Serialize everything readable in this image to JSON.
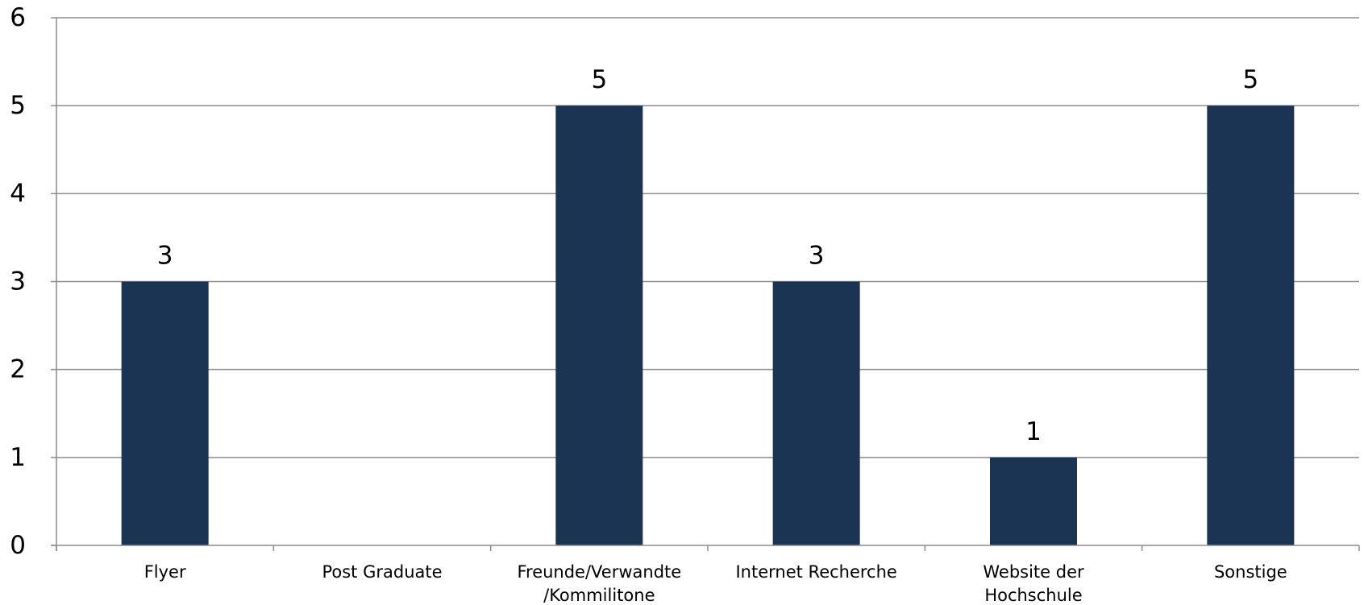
{
  "chart_data": {
    "type": "bar",
    "categories": [
      [
        "Flyer"
      ],
      [
        "Post Graduate"
      ],
      [
        "Freunde/Verwandte",
        "/Kommilitone"
      ],
      [
        "Internet Recherche"
      ],
      [
        "Website der",
        "Hochschule"
      ],
      [
        "Sonstige"
      ]
    ],
    "values": [
      3,
      0,
      5,
      3,
      1,
      5
    ],
    "data_labels": [
      "3",
      "",
      "5",
      "3",
      "1",
      "5"
    ],
    "ylim": [
      0,
      6
    ],
    "yticks": [
      0,
      1,
      2,
      3,
      4,
      5,
      6
    ],
    "grid": true,
    "legend": "none",
    "bar_color": "#1c3454",
    "grid_color": "#8c8c8c",
    "title": "",
    "xlabel": "",
    "ylabel": ""
  }
}
